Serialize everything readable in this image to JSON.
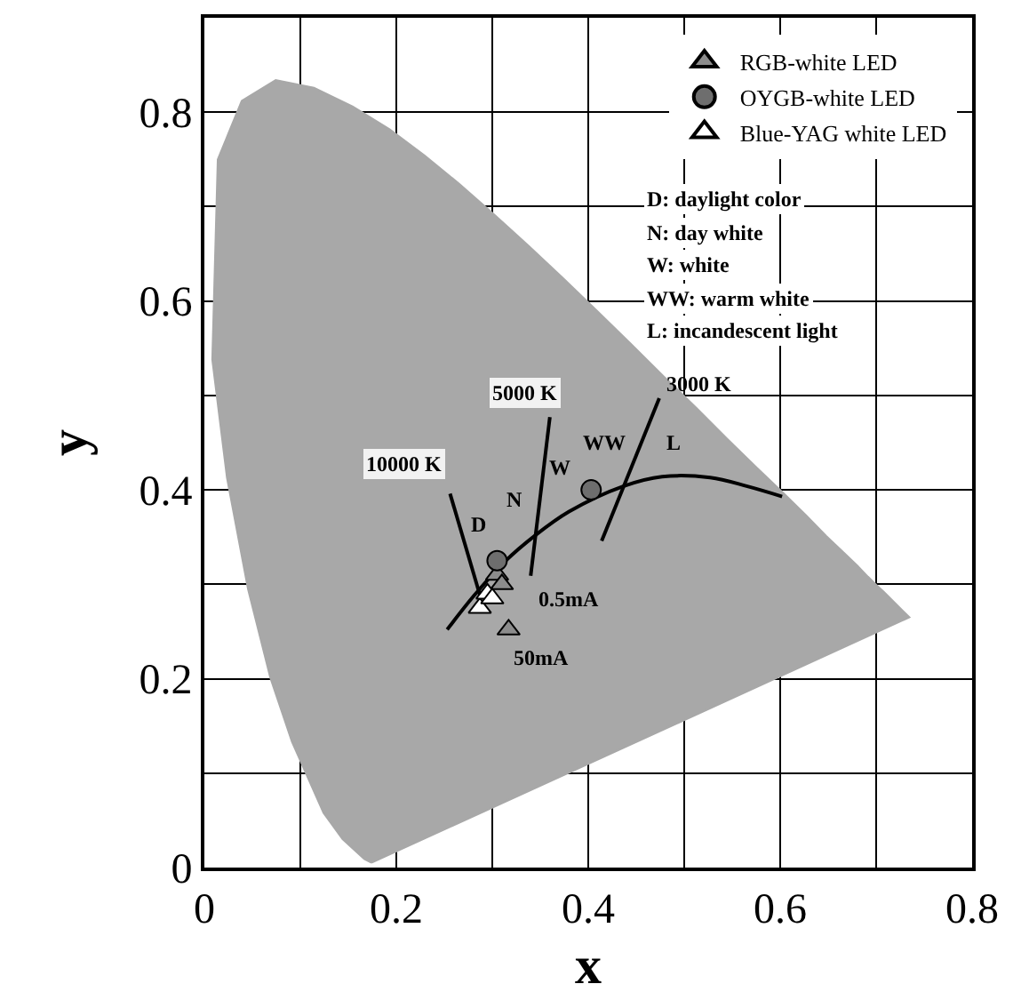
{
  "chart_data": {
    "type": "scatter",
    "xlabel": "x",
    "ylabel": "y",
    "xlim": [
      0,
      0.8
    ],
    "ylim": [
      0,
      0.9
    ],
    "xticks": [
      0,
      {
        "value": 0.1,
        "label": null
      },
      0.2,
      {
        "value": 0.3,
        "label": null
      },
      0.4,
      {
        "value": 0.5,
        "label": null
      },
      0.6,
      {
        "value": 0.7,
        "label": null
      },
      0.8
    ],
    "yticks": [
      0,
      {
        "value": 0.1,
        "label": null
      },
      0.2,
      {
        "value": 0.3,
        "label": null
      },
      0.4,
      {
        "value": 0.5,
        "label": null
      },
      0.6,
      {
        "value": 0.7,
        "label": null
      },
      0.8
    ],
    "grid": true,
    "legend": "top right",
    "series": [
      {
        "type": "area",
        "color": "#a8a8a8",
        "x": [
          0.1741,
          0.1666,
          0.144,
          0.1241,
          0.0913,
          0.0687,
          0.0454,
          0.0235,
          0.0082,
          0.0139,
          0.0389,
          0.0743,
          0.1142,
          0.1547,
          0.1929,
          0.2296,
          0.2658,
          0.3016,
          0.3373,
          0.3731,
          0.4087,
          0.4441,
          0.4788,
          0.5125,
          0.5448,
          0.5752,
          0.6029,
          0.627,
          0.6482,
          0.6658,
          0.6801,
          0.6915,
          0.7006,
          0.7079,
          0.7347,
          0.1741
        ],
        "values": [
          0.005,
          0.009,
          0.03,
          0.058,
          0.133,
          0.201,
          0.295,
          0.413,
          0.538,
          0.75,
          0.812,
          0.834,
          0.826,
          0.806,
          0.782,
          0.754,
          0.724,
          0.692,
          0.659,
          0.625,
          0.59,
          0.555,
          0.52,
          0.487,
          0.454,
          0.424,
          0.397,
          0.373,
          0.351,
          0.334,
          0.32,
          0.308,
          0.299,
          0.292,
          0.265,
          0.005
        ]
      },
      {
        "type": "line",
        "color": "#000000",
        "x": [
          0.253,
          0.281,
          0.313,
          0.345,
          0.38,
          0.437,
          0.477,
          0.527,
          0.565,
          0.602
        ],
        "values": [
          0.252,
          0.288,
          0.324,
          0.352,
          0.377,
          0.404,
          0.414,
          0.413,
          0.404,
          0.393
        ]
      },
      {
        "type": "line",
        "color": "#000000",
        "x": [
          0.256,
          0.287
        ],
        "values": [
          0.396,
          0.289
        ]
      },
      {
        "type": "line",
        "color": "#000000",
        "x": [
          0.36,
          0.34
        ],
        "values": [
          0.477,
          0.309
        ]
      },
      {
        "type": "line",
        "color": "#000000",
        "x": [
          0.474,
          0.414
        ],
        "values": [
          0.497,
          0.346
        ]
      },
      {
        "name": "RGB-white LED",
        "marker": "triangle",
        "color": "#8c8c8c",
        "x": [
          0.305,
          0.31,
          0.317
        ],
        "values": [
          0.31,
          0.3,
          0.252
        ]
      },
      {
        "name": "OYGB-white LED",
        "marker": "circle",
        "color": "#6e6e6e",
        "x": [
          0.403,
          0.305
        ],
        "values": [
          0.4,
          0.325
        ]
      },
      {
        "name": "Blue-YAG white LED",
        "marker": "triangle",
        "color": "#ffffff",
        "x": [
          0.287,
          0.295,
          0.3
        ],
        "values": [
          0.275,
          0.29,
          0.285
        ]
      }
    ],
    "annotations": [
      "10000 K",
      "5000 K",
      "3000 K",
      "D",
      "N",
      "W",
      "WW",
      "L",
      "0.5mA",
      "50mA",
      "D: daylight color",
      "N: day white",
      "W: white",
      "WW: warm white",
      "L: incandescent light"
    ]
  }
}
